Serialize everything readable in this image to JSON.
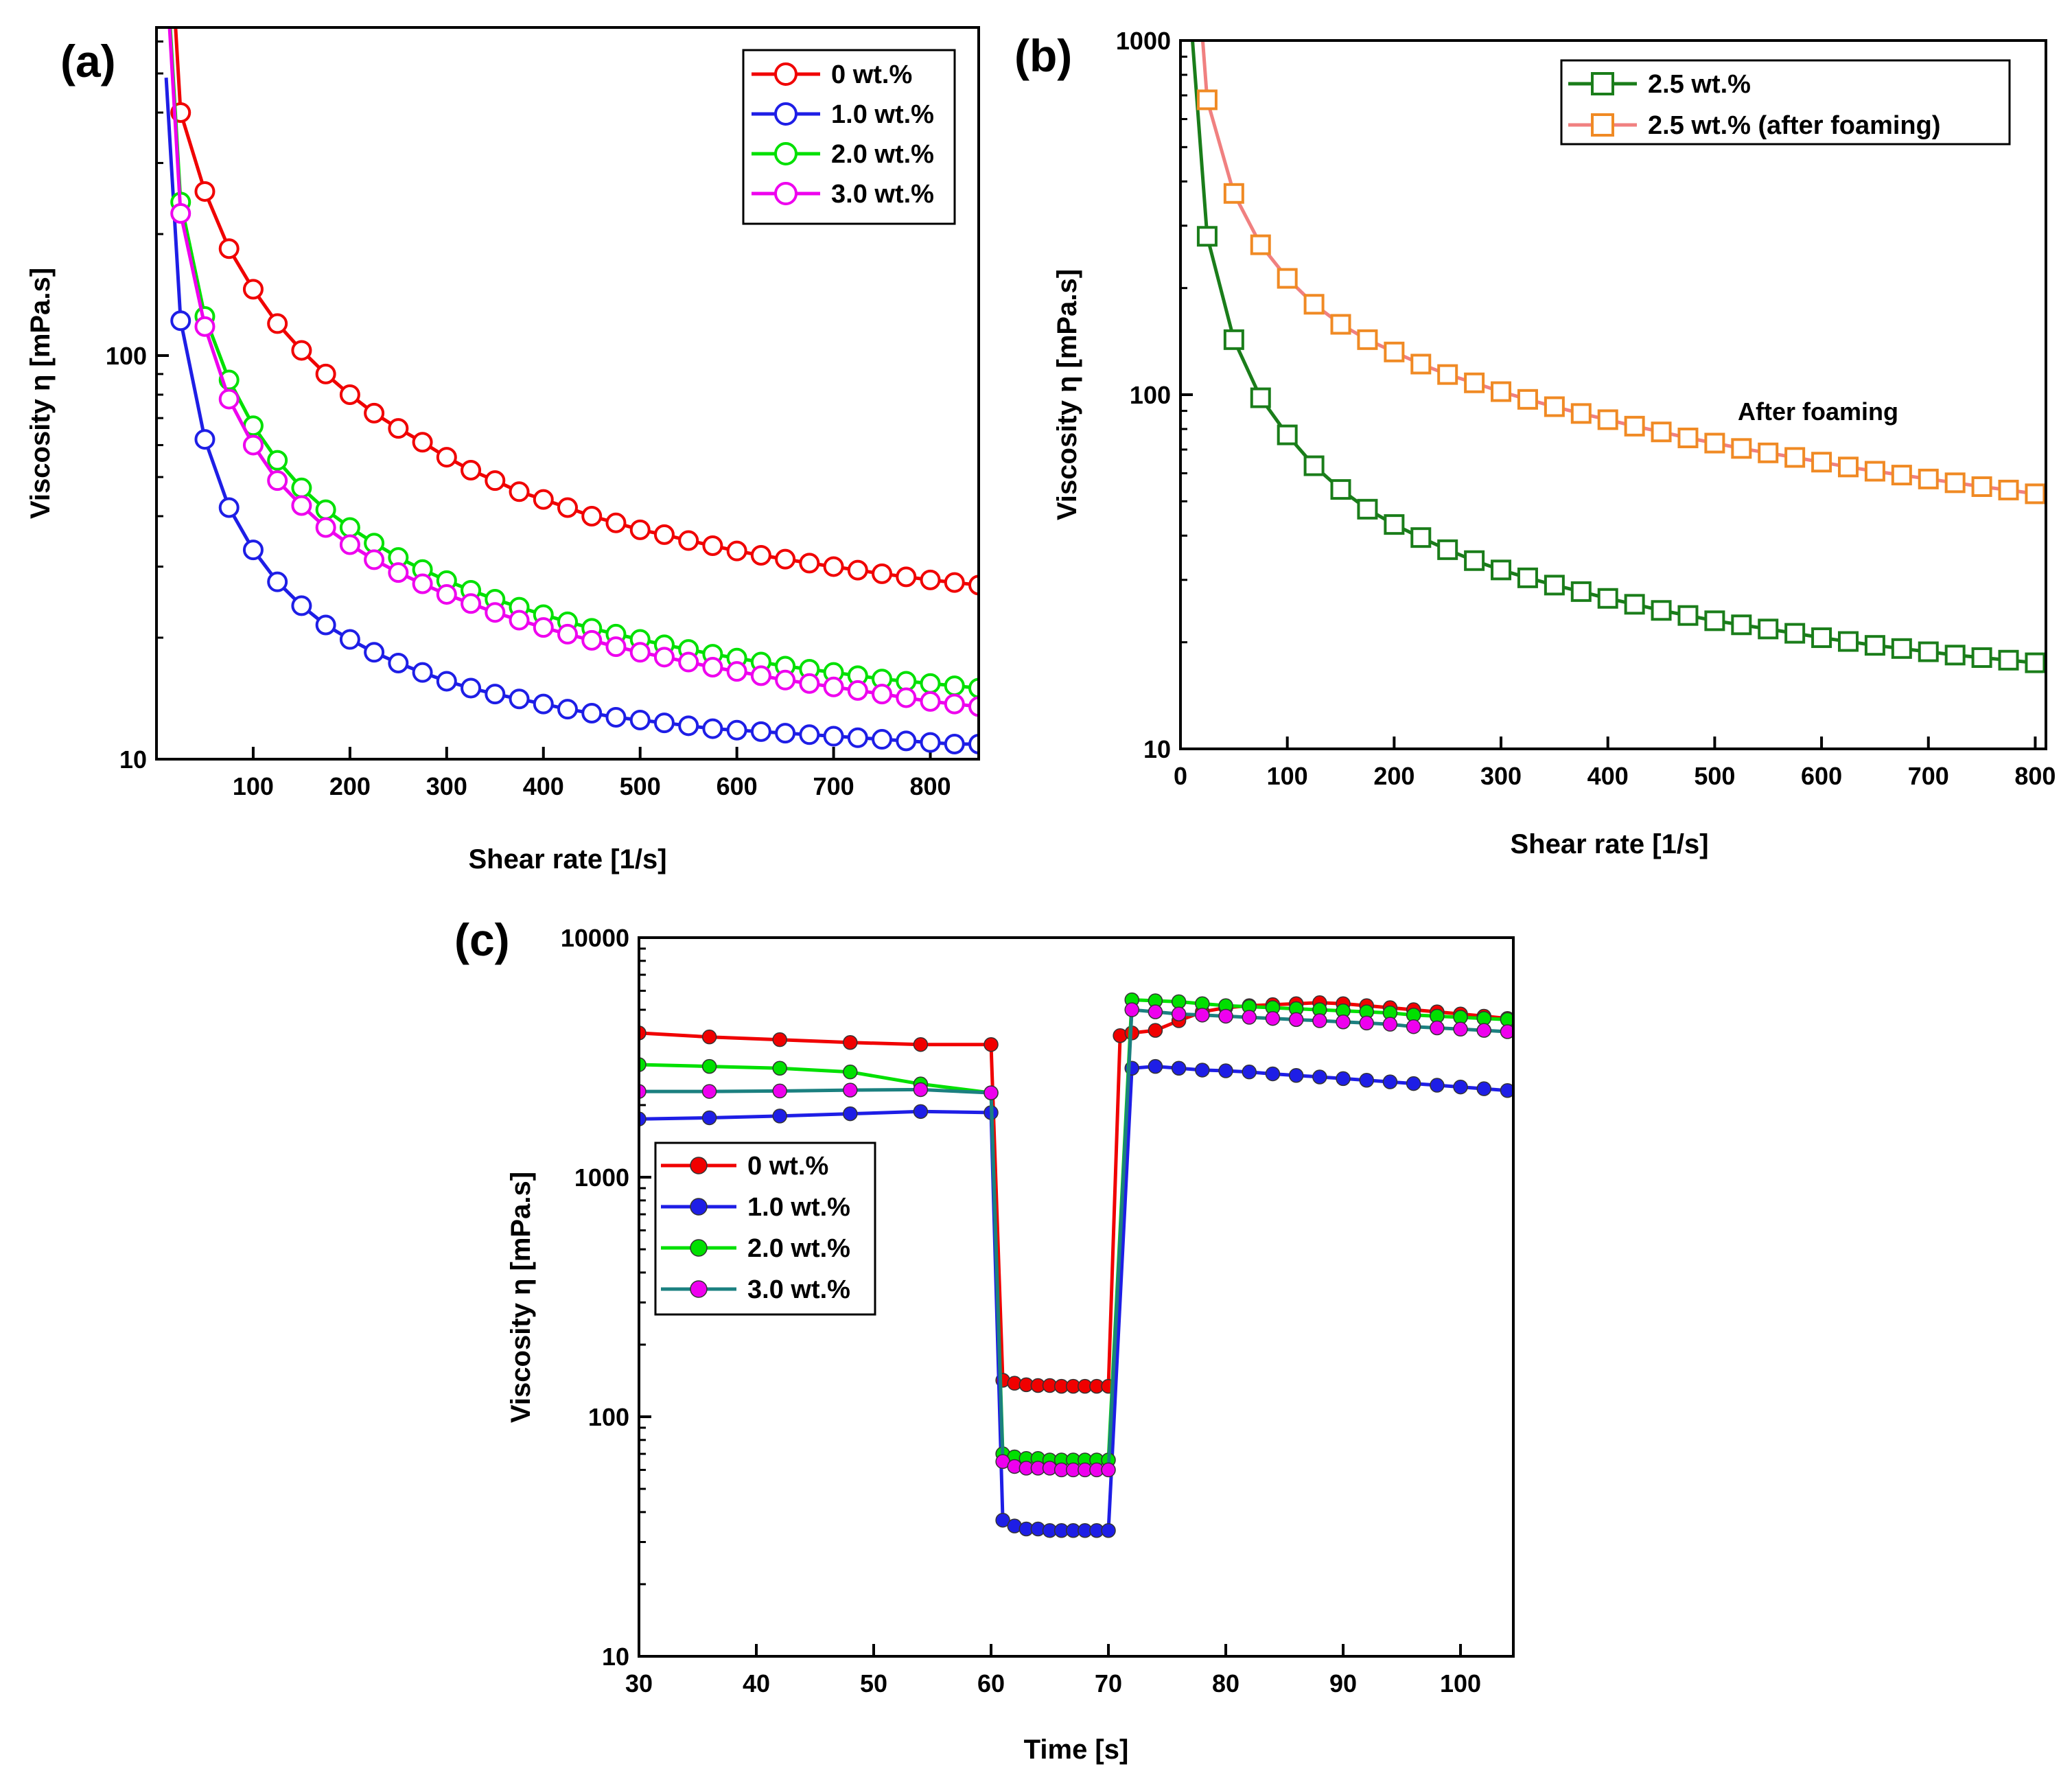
{
  "colors": {
    "red": "#f00000",
    "blue": "#1e1ee6",
    "green": "#00e000",
    "magenta": "#ee00ee",
    "darkgreen": "#1a7d1a",
    "orange": "#f08a24",
    "salmon": "#f08080",
    "teal": "#1b8080",
    "black": "#000000"
  },
  "chart_data": [
    {
      "panel": "(a)",
      "type": "line",
      "xlabel": "Shear rate [1/s]",
      "ylabel": "Viscosity η [mPa.s]",
      "xlim": [
        0,
        850
      ],
      "ylim": [
        10,
        650
      ],
      "yscale": "log",
      "xticks": [
        "100",
        "200",
        "300",
        "400",
        "500",
        "600",
        "700",
        "800"
      ],
      "yticks": [
        "10",
        "100"
      ],
      "legend_position": "top-right",
      "x": [
        25,
        50,
        75,
        100,
        125,
        150,
        175,
        200,
        225,
        250,
        275,
        300,
        325,
        350,
        375,
        400,
        425,
        450,
        475,
        500,
        525,
        550,
        575,
        600,
        625,
        650,
        675,
        700,
        725,
        750,
        775,
        800,
        825,
        850
      ],
      "series": [
        {
          "name": "0 wt.%",
          "marker": "open-circle",
          "color": "#f00000",
          "values": [
            400,
            255,
            184,
            146,
            120,
            103,
            90,
            80,
            72,
            66,
            61,
            56,
            52,
            49,
            46,
            44,
            42,
            40,
            38.5,
            37,
            36,
            34.8,
            33.8,
            32.8,
            32,
            31.3,
            30.6,
            30,
            29.4,
            28.8,
            28.3,
            27.8,
            27.4,
            27
          ]
        },
        {
          "name": "1.0 wt.%",
          "marker": "open-circle",
          "color": "#1e1ee6",
          "values": [
            122,
            62,
            42,
            33,
            27.5,
            24,
            21.5,
            19.8,
            18.4,
            17.3,
            16.4,
            15.6,
            15,
            14.5,
            14.1,
            13.7,
            13.3,
            13,
            12.7,
            12.5,
            12.3,
            12.1,
            11.9,
            11.8,
            11.7,
            11.6,
            11.5,
            11.4,
            11.3,
            11.2,
            11.1,
            11,
            10.9,
            10.9
          ]
        },
        {
          "name": "2.0 wt.%",
          "marker": "open-circle",
          "color": "#00e000",
          "values": [
            240,
            125,
            87,
            67,
            55,
            47,
            41.5,
            37.5,
            34.3,
            31.6,
            29.5,
            27.7,
            26.2,
            24.9,
            23.8,
            22.8,
            21.9,
            21.1,
            20.4,
            19.8,
            19.2,
            18.7,
            18.2,
            17.8,
            17.4,
            17,
            16.7,
            16.4,
            16.1,
            15.8,
            15.6,
            15.4,
            15.2,
            15
          ]
        },
        {
          "name": "3.0 wt.%",
          "marker": "open-circle",
          "color": "#ee00ee",
          "values": [
            225,
            118,
            78,
            60,
            49,
            42.5,
            37.5,
            34,
            31.2,
            29,
            27.2,
            25.6,
            24.3,
            23.1,
            22.1,
            21.2,
            20.4,
            19.7,
            19,
            18.4,
            17.9,
            17.4,
            16.9,
            16.5,
            16.1,
            15.7,
            15.4,
            15.1,
            14.8,
            14.5,
            14.2,
            13.9,
            13.7,
            13.5
          ]
        }
      ]
    },
    {
      "panel": "(b)",
      "type": "line",
      "xlabel": "Shear rate [1/s]",
      "ylabel": "Viscosity η [mPa.s]",
      "xlim": [
        0,
        810
      ],
      "ylim": [
        10,
        1000
      ],
      "yscale": "log",
      "xticks": [
        "0",
        "100",
        "200",
        "300",
        "400",
        "500",
        "600",
        "700",
        "800"
      ],
      "yticks": [
        "10",
        "100",
        "1000"
      ],
      "legend_position": "top-right",
      "annotation": "After foaming",
      "x": [
        25,
        50,
        75,
        100,
        125,
        150,
        175,
        200,
        225,
        250,
        275,
        300,
        325,
        350,
        375,
        400,
        425,
        450,
        475,
        500,
        525,
        550,
        575,
        600,
        625,
        650,
        675,
        700,
        725,
        750,
        775,
        800
      ],
      "series": [
        {
          "name": "2.5 wt.%",
          "marker": "open-square",
          "color": "#1a7d1a",
          "values": [
            280,
            143,
            98,
            77,
            63,
            54,
            47.5,
            43,
            39.5,
            36.5,
            34,
            32,
            30.4,
            29,
            27.8,
            26.6,
            25.6,
            24.6,
            23.8,
            23,
            22.4,
            21.8,
            21.2,
            20.6,
            20.1,
            19.6,
            19.2,
            18.8,
            18.4,
            18.1,
            17.8,
            17.5
          ]
        },
        {
          "name": "2.5 wt.% (after foaming)",
          "marker": "open-square",
          "color": "#f08a24",
          "line_color": "#f08080",
          "values": [
            680,
            370,
            265,
            213,
            180,
            158,
            143,
            132,
            122,
            114,
            108,
            102,
            97,
            92.5,
            88.5,
            85,
            81.5,
            78.5,
            75.5,
            73,
            70.5,
            68.5,
            66.5,
            64.5,
            62.5,
            60.8,
            59.3,
            57.8,
            56.4,
            55,
            53.8,
            52.5
          ]
        }
      ]
    },
    {
      "panel": "(c)",
      "type": "line",
      "xlabel": "Time [s]",
      "ylabel": "Viscosity η [mPa.s]",
      "xlim": [
        30,
        104.5
      ],
      "ylim": [
        10,
        10000
      ],
      "yscale": "log",
      "xticks": [
        "30",
        "40",
        "50",
        "60",
        "70",
        "80",
        "90",
        "100"
      ],
      "yticks": [
        "10",
        "100",
        "1000",
        "10000"
      ],
      "legend_position": "center-left",
      "series": [
        {
          "name": "0 wt.%",
          "marker": "filled-circle",
          "color": "#f00000",
          "points": [
            [
              30,
              4000
            ],
            [
              36,
              3850
            ],
            [
              42,
              3750
            ],
            [
              48,
              3650
            ],
            [
              54,
              3580
            ],
            [
              60,
              3580
            ],
            [
              61,
              142
            ],
            [
              62,
              138
            ],
            [
              63,
              136
            ],
            [
              64,
              135
            ],
            [
              65,
              135
            ],
            [
              66,
              134
            ],
            [
              67,
              134
            ],
            [
              68,
              134
            ],
            [
              69,
              134
            ],
            [
              70,
              134
            ],
            [
              71,
              3900
            ],
            [
              72,
              4000
            ],
            [
              74,
              4100
            ],
            [
              76,
              4500
            ],
            [
              78,
              4900
            ],
            [
              80,
              5100
            ],
            [
              82,
              5200
            ],
            [
              84,
              5250
            ],
            [
              86,
              5300
            ],
            [
              88,
              5350
            ],
            [
              90,
              5300
            ],
            [
              92,
              5200
            ],
            [
              94,
              5100
            ],
            [
              96,
              5000
            ],
            [
              98,
              4900
            ],
            [
              100,
              4800
            ],
            [
              102,
              4700
            ],
            [
              104,
              4600
            ]
          ]
        },
        {
          "name": "1.0 wt.%",
          "marker": "filled-circle",
          "color": "#1e1ee6",
          "points": [
            [
              30,
              1750
            ],
            [
              36,
              1770
            ],
            [
              42,
              1800
            ],
            [
              48,
              1840
            ],
            [
              54,
              1880
            ],
            [
              60,
              1860
            ],
            [
              61,
              37
            ],
            [
              62,
              35
            ],
            [
              63,
              34
            ],
            [
              64,
              34
            ],
            [
              65,
              33.5
            ],
            [
              66,
              33.5
            ],
            [
              67,
              33.5
            ],
            [
              68,
              33.5
            ],
            [
              69,
              33.5
            ],
            [
              70,
              33.5
            ],
            [
              72,
              2850
            ],
            [
              74,
              2900
            ],
            [
              76,
              2850
            ],
            [
              78,
              2800
            ],
            [
              80,
              2780
            ],
            [
              82,
              2750
            ],
            [
              84,
              2700
            ],
            [
              86,
              2660
            ],
            [
              88,
              2620
            ],
            [
              90,
              2580
            ],
            [
              92,
              2540
            ],
            [
              94,
              2500
            ],
            [
              96,
              2460
            ],
            [
              98,
              2420
            ],
            [
              100,
              2380
            ],
            [
              102,
              2340
            ],
            [
              104,
              2300
            ]
          ]
        },
        {
          "name": "2.0 wt.%",
          "marker": "filled-circle",
          "color": "#00e000",
          "points": [
            [
              30,
              2950
            ],
            [
              36,
              2900
            ],
            [
              42,
              2850
            ],
            [
              48,
              2750
            ],
            [
              54,
              2450
            ],
            [
              60,
              2250
            ],
            [
              61,
              70
            ],
            [
              62,
              68
            ],
            [
              63,
              67
            ],
            [
              64,
              67
            ],
            [
              65,
              66
            ],
            [
              66,
              66
            ],
            [
              67,
              66
            ],
            [
              68,
              66
            ],
            [
              69,
              66
            ],
            [
              70,
              66
            ],
            [
              72,
              5500
            ],
            [
              74,
              5450
            ],
            [
              76,
              5400
            ],
            [
              78,
              5300
            ],
            [
              80,
              5200
            ],
            [
              82,
              5150
            ],
            [
              84,
              5100
            ],
            [
              86,
              5050
            ],
            [
              88,
              5000
            ],
            [
              90,
              4950
            ],
            [
              92,
              4900
            ],
            [
              94,
              4850
            ],
            [
              96,
              4750
            ],
            [
              98,
              4700
            ],
            [
              100,
              4650
            ],
            [
              102,
              4600
            ],
            [
              104,
              4550
            ]
          ]
        },
        {
          "name": "3.0 wt.%",
          "marker": "filled-circle",
          "color": "#ee00ee",
          "line_color": "#1b8080",
          "points": [
            [
              30,
              2280
            ],
            [
              36,
              2280
            ],
            [
              42,
              2290
            ],
            [
              48,
              2310
            ],
            [
              54,
              2320
            ],
            [
              60,
              2250
            ],
            [
              61,
              65
            ],
            [
              62,
              62
            ],
            [
              63,
              61
            ],
            [
              64,
              61
            ],
            [
              65,
              61
            ],
            [
              66,
              60
            ],
            [
              67,
              60
            ],
            [
              68,
              60
            ],
            [
              69,
              60
            ],
            [
              70,
              60
            ],
            [
              72,
              5000
            ],
            [
              74,
              4900
            ],
            [
              76,
              4800
            ],
            [
              78,
              4750
            ],
            [
              80,
              4700
            ],
            [
              82,
              4650
            ],
            [
              84,
              4600
            ],
            [
              86,
              4550
            ],
            [
              88,
              4500
            ],
            [
              90,
              4450
            ],
            [
              92,
              4400
            ],
            [
              94,
              4350
            ],
            [
              96,
              4250
            ],
            [
              98,
              4200
            ],
            [
              100,
              4150
            ],
            [
              102,
              4100
            ],
            [
              104,
              4050
            ]
          ]
        }
      ]
    }
  ]
}
